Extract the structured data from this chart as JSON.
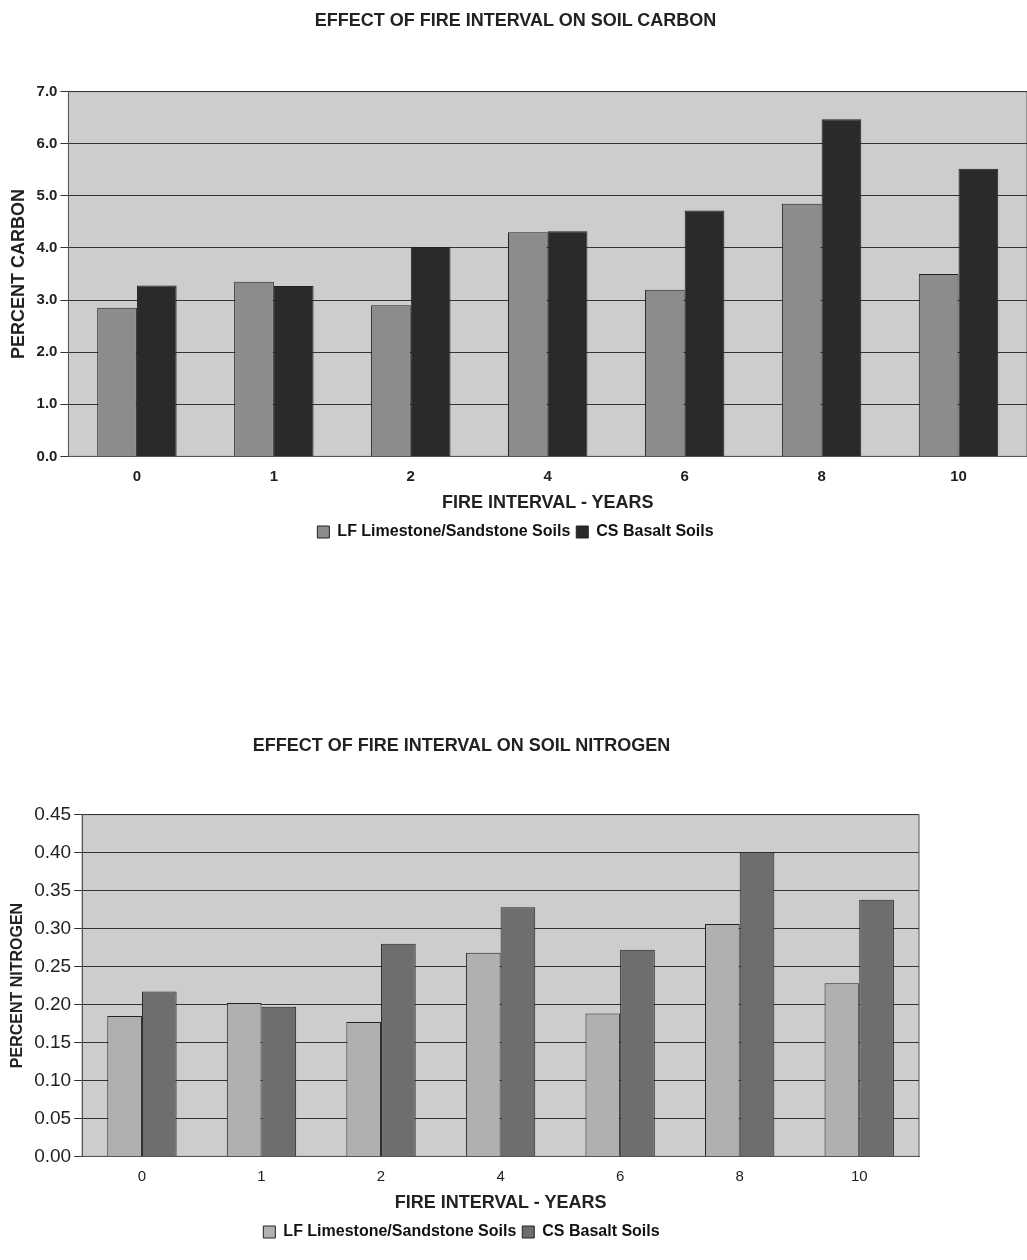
{
  "chart_data": [
    {
      "type": "bar",
      "title": "EFFECT OF FIRE INTERVAL ON SOIL CARBON",
      "xlabel": "FIRE INTERVAL - YEARS",
      "ylabel": "PERCENT CARBON",
      "categories": [
        "0",
        "1",
        "2",
        "4",
        "6",
        "8",
        "10"
      ],
      "series": [
        {
          "name": "LF Limestone/Sandstone Soils",
          "color": "#8c8c8c",
          "values": [
            2.85,
            3.35,
            2.9,
            4.3,
            3.2,
            4.85,
            3.5
          ]
        },
        {
          "name": "CS Basalt Soils",
          "color": "#2a2a2a",
          "values": [
            3.28,
            3.27,
            4.02,
            4.32,
            4.72,
            6.47,
            5.52
          ]
        }
      ],
      "ylim": [
        0,
        7
      ],
      "yticks": [
        {
          "value": 0,
          "label": "0.0"
        },
        {
          "value": 1,
          "label": "1.0"
        },
        {
          "value": 2,
          "label": "2.0"
        },
        {
          "value": 3,
          "label": "3.0"
        },
        {
          "value": 4,
          "label": "4.0"
        },
        {
          "value": 5,
          "label": "5.0"
        },
        {
          "value": 6,
          "label": "6.0"
        },
        {
          "value": 7,
          "label": "7.0"
        }
      ],
      "grid": "y",
      "legend": "bottom"
    },
    {
      "type": "bar",
      "title": "EFFECT OF FIRE INTERVAL ON SOIL NITROGEN",
      "xlabel": "FIRE INTERVAL - YEARS",
      "ylabel": "PERCENT NITROGEN",
      "categories": [
        "0",
        "1",
        "2",
        "4",
        "6",
        "8",
        "10"
      ],
      "series": [
        {
          "name": "LF Limestone/Sandstone Soils",
          "color": "#b0b0b0",
          "values": [
            0.185,
            0.202,
            0.177,
            0.268,
            0.188,
            0.306,
            0.228
          ]
        },
        {
          "name": "CS Basalt Soils",
          "color": "#6e6e6e",
          "values": [
            0.217,
            0.197,
            0.28,
            0.328,
            0.272,
            0.4,
            0.338
          ]
        }
      ],
      "ylim": [
        0,
        0.45
      ],
      "yticks": [
        {
          "value": 0,
          "label": "0.00"
        },
        {
          "value": 0.05,
          "label": "0.05"
        },
        {
          "value": 0.1,
          "label": "0.10"
        },
        {
          "value": 0.15,
          "label": "0.15"
        },
        {
          "value": 0.2,
          "label": "0.20"
        },
        {
          "value": 0.25,
          "label": "0.25"
        },
        {
          "value": 0.3,
          "label": "0.30"
        },
        {
          "value": 0.35,
          "label": "0.35"
        },
        {
          "value": 0.4,
          "label": "0.40"
        },
        {
          "value": 0.45,
          "label": "0.45"
        }
      ],
      "grid": "y",
      "legend": "bottom"
    }
  ]
}
